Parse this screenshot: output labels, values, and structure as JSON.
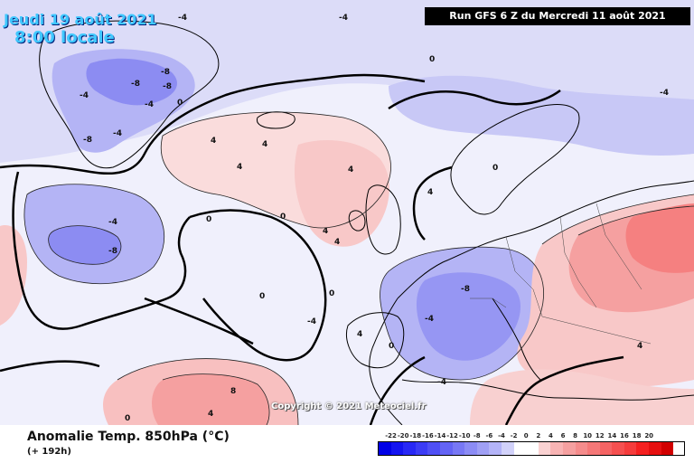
{
  "header": {
    "date_line1": "Jeudi 19 août 2021",
    "date_line2": "8:00 locale",
    "run_info": "Run GFS 6 Z du Mercredi 11 août 2021"
  },
  "watermark": "Copyright © 2021 Meteociel.fr",
  "footer": {
    "title": "Anomalie Temp. 850hPa (°C)",
    "subtitle": "(+ 192h)"
  },
  "legend": {
    "labels": [
      "-22",
      "-20",
      "-18",
      "-16",
      "-14",
      "-12",
      "-10",
      "-8",
      "-6",
      "-4",
      "-2",
      "0",
      "2",
      "4",
      "6",
      "8",
      "10",
      "12",
      "14",
      "16",
      "18",
      "20"
    ],
    "colors": [
      "#0000e6",
      "#1414f0",
      "#2828f5",
      "#3c3cf5",
      "#5050f5",
      "#6464f5",
      "#7878f5",
      "#8c8cf5",
      "#a0a0f5",
      "#b4b4f8",
      "#d2d2fa",
      "#ffffff",
      "#ffffff",
      "#fad2d2",
      "#f8b4b4",
      "#f5a0a0",
      "#f58c8c",
      "#f57878",
      "#f56464",
      "#f55050",
      "#f53c3c",
      "#f52020",
      "#e61010",
      "#d20000"
    ]
  },
  "contour_labels": [
    {
      "text": "-4"
    },
    {
      "text": "-4"
    },
    {
      "text": "0"
    },
    {
      "text": "-8"
    },
    {
      "text": "-8"
    },
    {
      "text": "-8"
    },
    {
      "text": "-4"
    },
    {
      "text": "-4"
    },
    {
      "text": "0"
    },
    {
      "text": "-4"
    },
    {
      "text": "-8"
    },
    {
      "text": "-4"
    },
    {
      "text": "0"
    },
    {
      "text": "4"
    },
    {
      "text": "4"
    },
    {
      "text": "4"
    },
    {
      "text": "4"
    },
    {
      "text": "0"
    },
    {
      "text": "4"
    },
    {
      "text": "0"
    },
    {
      "text": "0"
    },
    {
      "text": "-4"
    },
    {
      "text": "0"
    },
    {
      "text": "4"
    },
    {
      "text": "4"
    },
    {
      "text": "-4"
    },
    {
      "text": "-8"
    },
    {
      "text": "-8"
    },
    {
      "text": "-4"
    },
    {
      "text": "4"
    },
    {
      "text": "8"
    },
    {
      "text": "4"
    },
    {
      "text": "0"
    },
    {
      "text": "-4"
    },
    {
      "text": "0"
    },
    {
      "text": "4"
    }
  ]
}
